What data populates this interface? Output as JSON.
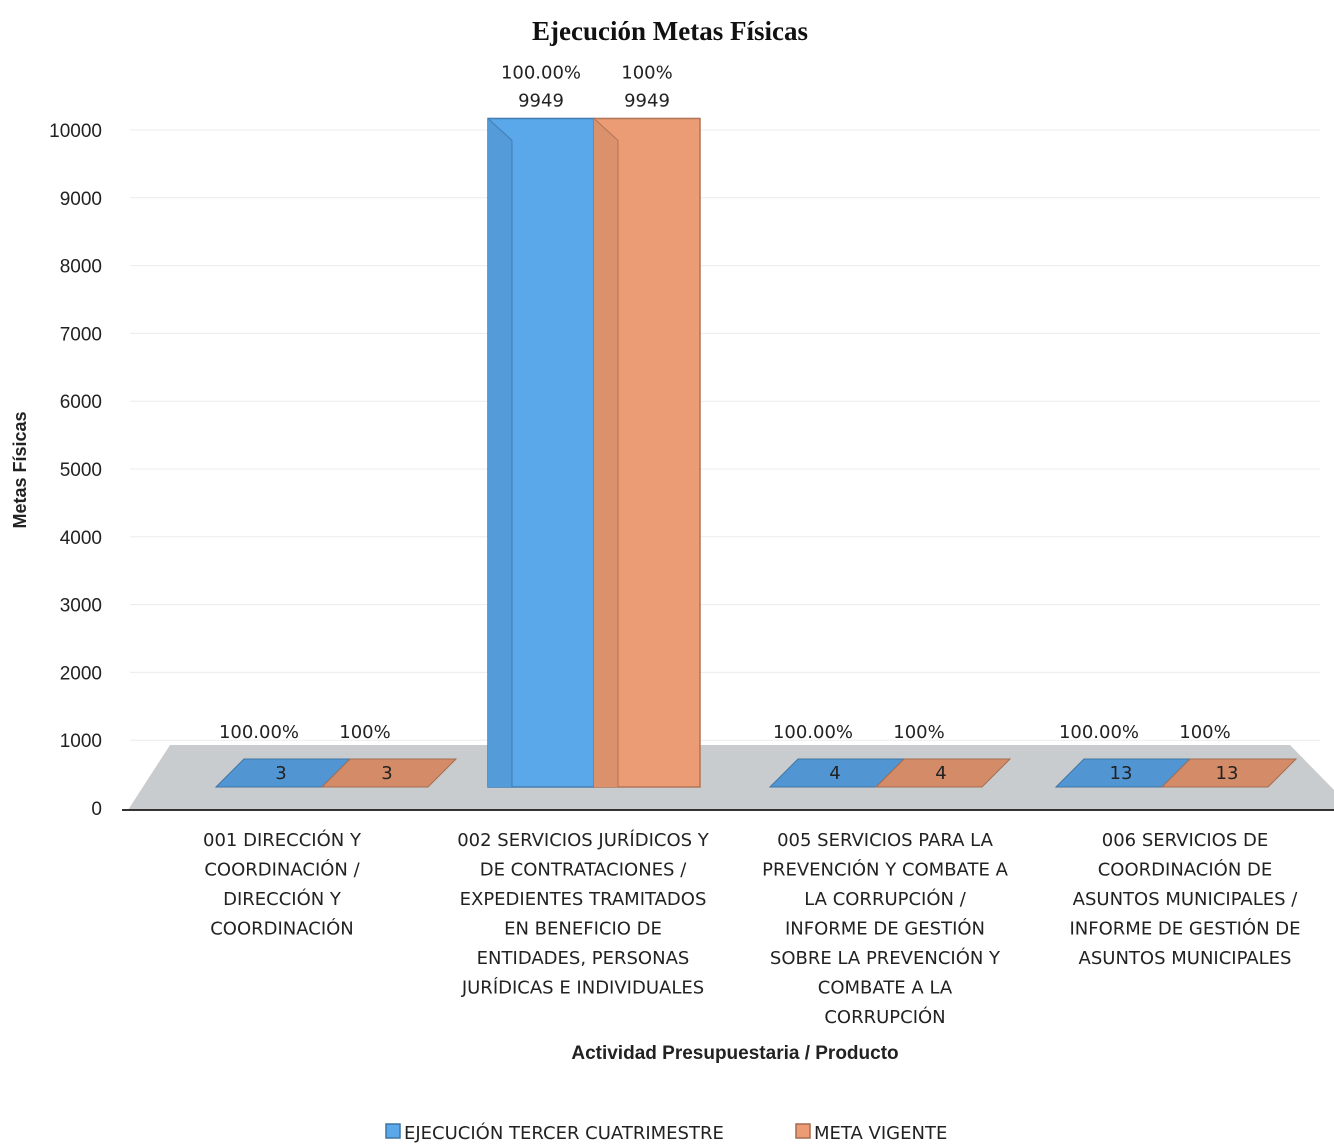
{
  "chart_data": {
    "type": "bar",
    "title": "Ejecución Metas Físicas",
    "xlabel": "Actividad Presupuestaria / Producto",
    "ylabel": "Metas Físicas",
    "ylim": [
      0,
      10000
    ],
    "yticks": [
      "0",
      "1000",
      "2000",
      "3000",
      "4000",
      "5000",
      "6000",
      "7000",
      "8000",
      "9000",
      "10000"
    ],
    "grid": true,
    "legend_position": "bottom",
    "categories": [
      [
        "001 DIRECCIÓN Y",
        "COORDINACIÓN /",
        "DIRECCIÓN Y",
        "COORDINACIÓN"
      ],
      [
        "002 SERVICIOS JURÍDICOS Y",
        "DE CONTRATACIONES /",
        "EXPEDIENTES TRAMITADOS",
        "EN BENEFICIO DE",
        "ENTIDADES, PERSONAS",
        "JURÍDICAS E INDIVIDUALES"
      ],
      [
        "005 SERVICIOS PARA LA",
        "PREVENCIÓN Y COMBATE A",
        "LA CORRUPCIÓN /",
        "INFORME DE GESTIÓN",
        "SOBRE LA PREVENCIÓN Y",
        "COMBATE A LA",
        "CORRUPCIÓN"
      ],
      [
        "006 SERVICIOS DE",
        "COORDINACIÓN DE",
        "ASUNTOS MUNICIPALES /",
        "INFORME DE GESTIÓN DE",
        "ASUNTOS MUNICIPALES"
      ]
    ],
    "series": [
      {
        "name": "EJECUCIÓN TERCER CUATRIMESTRE",
        "color": "#5aa7ea",
        "values": [
          3,
          9949,
          4,
          13
        ],
        "pct_labels": [
          "100.00%",
          "100.00%",
          "100.00%",
          "100.00%"
        ],
        "value_labels": [
          "3",
          "9949",
          "4",
          "13"
        ]
      },
      {
        "name": "META VIGENTE",
        "color": "#eb9c74",
        "values": [
          3,
          9949,
          4,
          13
        ],
        "pct_labels": [
          "100%",
          "100%",
          "100%",
          "100%"
        ],
        "value_labels": [
          "3",
          "9949",
          "4",
          "13"
        ]
      }
    ]
  }
}
